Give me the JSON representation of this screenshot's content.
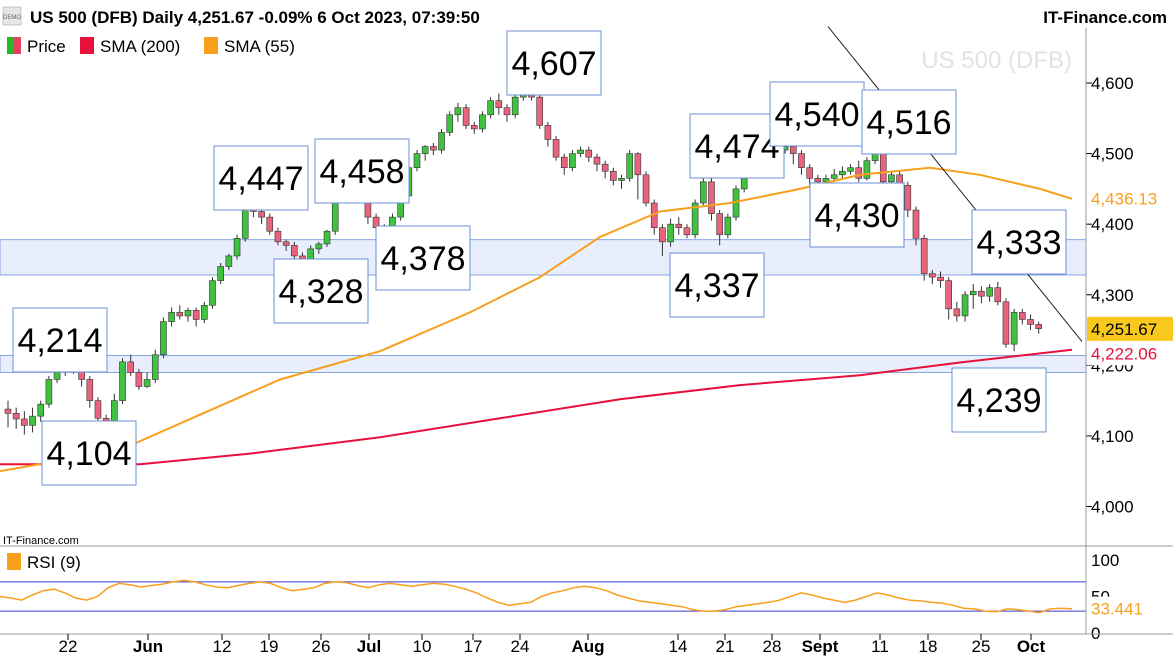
{
  "header": {
    "title": "US 500 (DFB) Daily 4,251.67 -0.09% 6 Oct 2023, 07:39:50",
    "site": "IT-Finance.com",
    "demo_badge": "DEMO"
  },
  "watermark": "US 500 (DFB)",
  "legend": [
    {
      "label": "Price",
      "color": "#28b828"
    },
    {
      "label": "SMA (200)",
      "color": "#e8103a"
    },
    {
      "label": "SMA (55)",
      "color": "#f8a01c"
    }
  ],
  "chart_data": [
    {
      "type": "candlestick",
      "title": "US 500 (DFB) Daily",
      "ylim": [
        3960,
        4680
      ],
      "y_ticks": [
        "4,000",
        "4,100",
        "4,200",
        "4,300",
        "4,400",
        "4,500",
        "4,600"
      ],
      "x_ticks": [
        "22",
        "Jun",
        "12",
        "19",
        "26",
        "Jul",
        "10",
        "17",
        "24",
        "Aug",
        "14",
        "21",
        "28",
        "Sept",
        "11",
        "18",
        "25",
        "Oct"
      ],
      "current_price_label": "4,251.67",
      "current_price": 4251.67,
      "sma200_label": "4,222.06",
      "sma200_value": 4222.06,
      "sma55_label": "4,436.13",
      "sma55_value": 4436.13,
      "candles": [
        [
          4138,
          4132,
          4150,
          4112
        ],
        [
          4132,
          4124,
          4140,
          4110
        ],
        [
          4124,
          4115,
          4135,
          4102
        ],
        [
          4115,
          4128,
          4140,
          4105
        ],
        [
          4128,
          4145,
          4150,
          4120
        ],
        [
          4145,
          4180,
          4185,
          4140
        ],
        [
          4180,
          4210,
          4214,
          4175
        ],
        [
          4210,
          4195,
          4215,
          4185
        ],
        [
          4195,
          4205,
          4212,
          4188
        ],
        [
          4205,
          4180,
          4210,
          4170
        ],
        [
          4180,
          4150,
          4185,
          4140
        ],
        [
          4150,
          4125,
          4155,
          4115
        ],
        [
          4125,
          4110,
          4130,
          4104
        ],
        [
          4110,
          4150,
          4160,
          4105
        ],
        [
          4150,
          4205,
          4210,
          4145
        ],
        [
          4205,
          4190,
          4215,
          4185
        ],
        [
          4190,
          4170,
          4195,
          4165
        ],
        [
          4170,
          4180,
          4190,
          4168
        ],
        [
          4180,
          4215,
          4222,
          4175
        ],
        [
          4215,
          4262,
          4268,
          4210
        ],
        [
          4262,
          4275,
          4282,
          4255
        ],
        [
          4275,
          4270,
          4285,
          4265
        ],
        [
          4270,
          4278,
          4282,
          4262
        ],
        [
          4278,
          4265,
          4282,
          4255
        ],
        [
          4265,
          4285,
          4290,
          4260
        ],
        [
          4285,
          4320,
          4325,
          4280
        ],
        [
          4320,
          4340,
          4345,
          4315
        ],
        [
          4340,
          4355,
          4358,
          4335
        ],
        [
          4355,
          4380,
          4385,
          4350
        ],
        [
          4380,
          4425,
          4447,
          4375
        ],
        [
          4425,
          4418,
          4432,
          4410
        ],
        [
          4418,
          4410,
          4422,
          4400
        ],
        [
          4410,
          4390,
          4415,
          4385
        ],
        [
          4390,
          4375,
          4395,
          4370
        ],
        [
          4375,
          4370,
          4378,
          4362
        ],
        [
          4370,
          4355,
          4375,
          4345
        ],
        [
          4355,
          4340,
          4360,
          4328
        ],
        [
          4340,
          4365,
          4370,
          4335
        ],
        [
          4365,
          4372,
          4375,
          4358
        ],
        [
          4372,
          4390,
          4392,
          4368
        ],
        [
          4390,
          4440,
          4445,
          4385
        ],
        [
          4440,
          4450,
          4458,
          4435
        ],
        [
          4450,
          4448,
          4458,
          4440
        ],
        [
          4448,
          4440,
          4452,
          4432
        ],
        [
          4440,
          4410,
          4445,
          4400
        ],
        [
          4410,
          4395,
          4415,
          4385
        ],
        [
          4395,
          4390,
          4400,
          4378
        ],
        [
          4390,
          4410,
          4415,
          4385
        ],
        [
          4410,
          4440,
          4445,
          4405
        ],
        [
          4440,
          4480,
          4485,
          4435
        ],
        [
          4480,
          4500,
          4505,
          4475
        ],
        [
          4500,
          4510,
          4512,
          4490
        ],
        [
          4510,
          4505,
          4515,
          4498
        ],
        [
          4505,
          4530,
          4535,
          4500
        ],
        [
          4530,
          4555,
          4560,
          4525
        ],
        [
          4555,
          4565,
          4572,
          4545
        ],
        [
          4565,
          4540,
          4570,
          4535
        ],
        [
          4540,
          4535,
          4545,
          4528
        ],
        [
          4535,
          4555,
          4560,
          4530
        ],
        [
          4555,
          4575,
          4580,
          4550
        ],
        [
          4575,
          4565,
          4585,
          4555
        ],
        [
          4565,
          4555,
          4570,
          4545
        ],
        [
          4555,
          4580,
          4590,
          4550
        ],
        [
          4580,
          4595,
          4602,
          4575
        ],
        [
          4595,
          4580,
          4605,
          4575
        ],
        [
          4580,
          4540,
          4585,
          4535
        ],
        [
          4540,
          4520,
          4545,
          4510
        ],
        [
          4520,
          4495,
          4525,
          4490
        ],
        [
          4495,
          4480,
          4500,
          4470
        ],
        [
          4480,
          4500,
          4505,
          4475
        ],
        [
          4500,
          4505,
          4510,
          4495
        ],
        [
          4505,
          4495,
          4510,
          4488
        ],
        [
          4495,
          4485,
          4500,
          4475
        ],
        [
          4485,
          4475,
          4490,
          4465
        ],
        [
          4475,
          4462,
          4480,
          4455
        ],
        [
          4462,
          4465,
          4470,
          4450
        ],
        [
          4465,
          4500,
          4505,
          4460
        ],
        [
          4500,
          4470,
          4502,
          4435
        ],
        [
          4470,
          4430,
          4475,
          4425
        ],
        [
          4430,
          4395,
          4435,
          4385
        ],
        [
          4395,
          4375,
          4400,
          4355
        ],
        [
          4375,
          4400,
          4408,
          4368
        ],
        [
          4400,
          4395,
          4410,
          4385
        ],
        [
          4395,
          4385,
          4400,
          4380
        ],
        [
          4385,
          4430,
          4435,
          4380
        ],
        [
          4430,
          4460,
          4465,
          4425
        ],
        [
          4460,
          4415,
          4465,
          4405
        ],
        [
          4415,
          4385,
          4420,
          4370
        ],
        [
          4385,
          4410,
          4415,
          4380
        ],
        [
          4410,
          4450,
          4455,
          4405
        ],
        [
          4450,
          4500,
          4505,
          4445
        ],
        [
          4500,
          4512,
          4518,
          4495
        ],
        [
          4512,
          4515,
          4525,
          4505
        ],
        [
          4515,
          4510,
          4540,
          4500
        ],
        [
          4510,
          4505,
          4520,
          4498
        ],
        [
          4505,
          4510,
          4525,
          4500
        ],
        [
          4510,
          4500,
          4515,
          4485
        ],
        [
          4500,
          4480,
          4505,
          4470
        ],
        [
          4480,
          4465,
          4485,
          4455
        ],
        [
          4465,
          4460,
          4470,
          4450
        ],
        [
          4460,
          4465,
          4470,
          4455
        ],
        [
          4465,
          4470,
          4478,
          4460
        ],
        [
          4470,
          4475,
          4482,
          4465
        ],
        [
          4475,
          4480,
          4485,
          4470
        ],
        [
          4480,
          4465,
          4490,
          4460
        ],
        [
          4465,
          4490,
          4495,
          4462
        ],
        [
          4490,
          4510,
          4516,
          4485
        ],
        [
          4510,
          4460,
          4512,
          4450
        ],
        [
          4460,
          4470,
          4475,
          4455
        ],
        [
          4470,
          4455,
          4475,
          4445
        ],
        [
          4455,
          4420,
          4460,
          4410
        ],
        [
          4420,
          4380,
          4425,
          4370
        ],
        [
          4380,
          4330,
          4385,
          4320
        ],
        [
          4330,
          4325,
          4335,
          4315
        ],
        [
          4325,
          4320,
          4333,
          4310
        ],
        [
          4320,
          4280,
          4325,
          4265
        ],
        [
          4280,
          4270,
          4290,
          4262
        ],
        [
          4270,
          4300,
          4305,
          4262
        ],
        [
          4300,
          4305,
          4315,
          4280
        ],
        [
          4305,
          4298,
          4312,
          4288
        ],
        [
          4298,
          4310,
          4315,
          4290
        ],
        [
          4310,
          4290,
          4318,
          4285
        ],
        [
          4290,
          4230,
          4295,
          4225
        ],
        [
          4230,
          4275,
          4280,
          4220
        ],
        [
          4275,
          4265,
          4280,
          4258
        ],
        [
          4265,
          4258,
          4272,
          4250
        ],
        [
          4258,
          4252,
          4262,
          4245
        ]
      ],
      "sma200": [
        [
          0,
          4060
        ],
        [
          140,
          4060
        ],
        [
          250,
          4075
        ],
        [
          380,
          4098
        ],
        [
          500,
          4125
        ],
        [
          620,
          4152
        ],
        [
          740,
          4172
        ],
        [
          860,
          4186
        ],
        [
          960,
          4204
        ],
        [
          1072,
          4222
        ]
      ],
      "sma55": [
        [
          0,
          4050
        ],
        [
          120,
          4080
        ],
        [
          200,
          4130
        ],
        [
          280,
          4180
        ],
        [
          380,
          4220
        ],
        [
          470,
          4275
        ],
        [
          540,
          4325
        ],
        [
          600,
          4382
        ],
        [
          660,
          4418
        ],
        [
          730,
          4430
        ],
        [
          800,
          4450
        ],
        [
          860,
          4470
        ],
        [
          930,
          4480
        ],
        [
          980,
          4470
        ],
        [
          1040,
          4450
        ],
        [
          1072,
          4436
        ]
      ],
      "trendline": [
        [
          828,
          4680
        ],
        [
          1072,
          4262
        ]
      ],
      "zones": [
        [
          4328,
          4378
        ],
        [
          4190,
          4214
        ]
      ],
      "annotations": [
        {
          "label": "4,214",
          "value": 4214
        },
        {
          "label": "4,104",
          "value": 4104
        },
        {
          "label": "4,447",
          "value": 4447
        },
        {
          "label": "4,328",
          "value": 4328
        },
        {
          "label": "4,458",
          "value": 4458
        },
        {
          "label": "4,378",
          "value": 4378
        },
        {
          "label": "4,607",
          "value": 4607
        },
        {
          "label": "4,474",
          "value": 4474
        },
        {
          "label": "4,337",
          "value": 4337
        },
        {
          "label": "4,540",
          "value": 4540
        },
        {
          "label": "4,516",
          "value": 4516
        },
        {
          "label": "4,430",
          "value": 4430
        },
        {
          "label": "4,333",
          "value": 4333
        },
        {
          "label": "4,239",
          "value": 4239
        }
      ]
    },
    {
      "type": "line",
      "title": "RSI (9)",
      "ylim": [
        0,
        100
      ],
      "y_ticks": [
        "100",
        "50",
        "0"
      ],
      "overbought": 70,
      "oversold": 30,
      "current_value_label": "33.441",
      "current_value": 33.441,
      "values": [
        50,
        48,
        45,
        52,
        58,
        60,
        55,
        48,
        45,
        50,
        62,
        68,
        66,
        63,
        65,
        67,
        70,
        72,
        70,
        66,
        63,
        62,
        65,
        68,
        70,
        68,
        62,
        58,
        60,
        62,
        68,
        70,
        69,
        65,
        62,
        66,
        68,
        66,
        64,
        66,
        68,
        67,
        64,
        60,
        55,
        48,
        42,
        38,
        40,
        42,
        50,
        55,
        58,
        62,
        64,
        62,
        58,
        52,
        48,
        44,
        42,
        40,
        38,
        36,
        32,
        30,
        30,
        32,
        36,
        38,
        40,
        42,
        45,
        50,
        55,
        52,
        48,
        45,
        42,
        45,
        50,
        55,
        52,
        48,
        45,
        44,
        42,
        41,
        38,
        34,
        33,
        30,
        29,
        33,
        32,
        30,
        28,
        33,
        34,
        33
      ]
    }
  ]
}
